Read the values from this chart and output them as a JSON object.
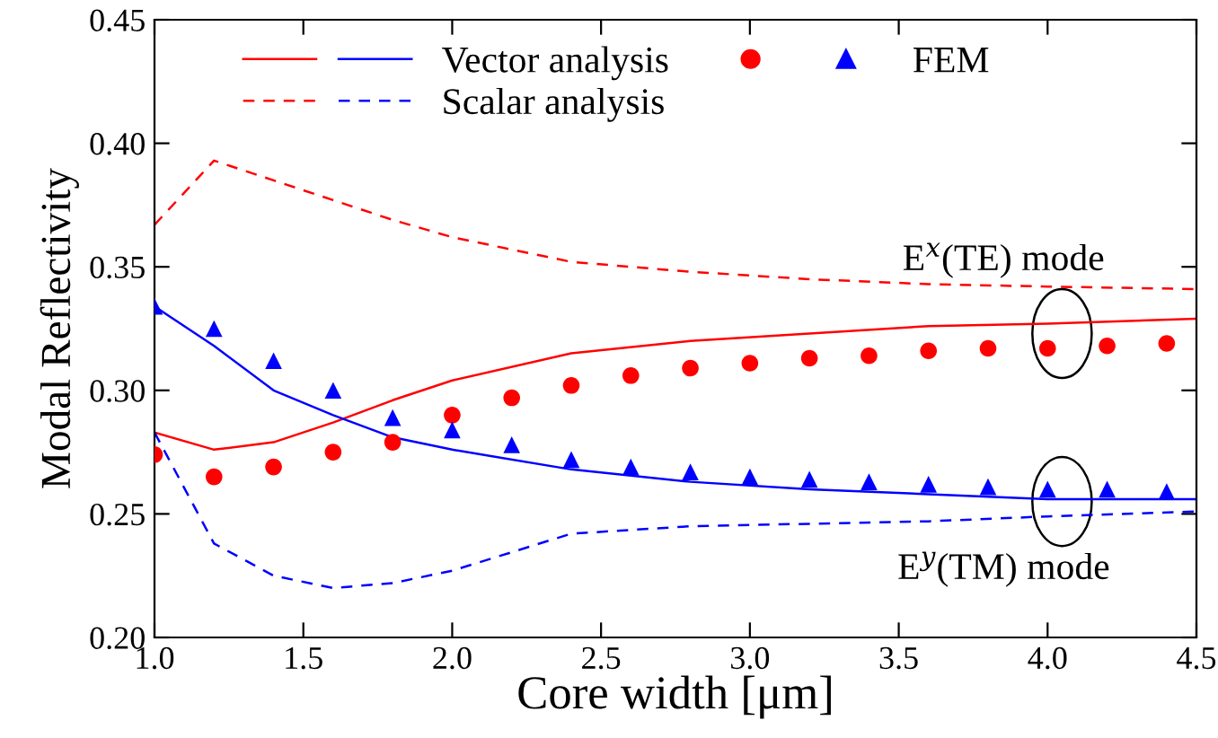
{
  "chart_data": {
    "type": "line",
    "xlabel": "Core width [μm]",
    "ylabel": "Modal Reflectivity",
    "xlim": [
      1.0,
      4.5
    ],
    "ylim": [
      0.2,
      0.45
    ],
    "xticks": [
      {
        "value": 1.0,
        "label": "1.0"
      },
      {
        "value": 1.5,
        "label": "1.5"
      },
      {
        "value": 2.0,
        "label": "2.0"
      },
      {
        "value": 2.5,
        "label": "2.5"
      },
      {
        "value": 3.0,
        "label": "3.0"
      },
      {
        "value": 3.5,
        "label": "3.5"
      },
      {
        "value": 4.0,
        "label": "4.0"
      },
      {
        "value": 4.5,
        "label": "4.5"
      }
    ],
    "yticks": [
      {
        "value": 0.2,
        "label": "0.20"
      },
      {
        "value": 0.25,
        "label": "0.25"
      },
      {
        "value": 0.3,
        "label": "0.30"
      },
      {
        "value": 0.35,
        "label": "0.35"
      },
      {
        "value": 0.4,
        "label": "0.40"
      },
      {
        "value": 0.45,
        "label": "0.45"
      }
    ],
    "grid": false,
    "legend": "top left",
    "series": [
      {
        "line_style": "solid",
        "color": "#ff0000",
        "x": [
          1.0,
          1.2,
          1.4,
          1.6,
          1.8,
          2.0,
          2.4,
          2.8,
          3.2,
          3.6,
          4.0,
          4.5
        ],
        "values": [
          0.283,
          0.276,
          0.279,
          0.287,
          0.296,
          0.304,
          0.315,
          0.32,
          0.323,
          0.326,
          0.327,
          0.329
        ]
      },
      {
        "name": "Vector analysis",
        "line_style": "solid",
        "color": "#0000ff",
        "x": [
          1.0,
          1.2,
          1.4,
          1.6,
          1.8,
          2.0,
          2.4,
          2.8,
          3.2,
          3.6,
          4.0,
          4.5
        ],
        "values": [
          0.334,
          0.318,
          0.3,
          0.29,
          0.281,
          0.276,
          0.268,
          0.263,
          0.26,
          0.258,
          0.256,
          0.256
        ]
      },
      {
        "line_style": "dashed",
        "color": "#ff0000",
        "x": [
          1.0,
          1.2,
          1.4,
          1.6,
          1.8,
          2.0,
          2.4,
          2.8,
          3.2,
          3.6,
          4.0,
          4.5
        ],
        "values": [
          0.367,
          0.393,
          0.385,
          0.377,
          0.369,
          0.362,
          0.352,
          0.348,
          0.345,
          0.343,
          0.342,
          0.341
        ]
      },
      {
        "name": "Scalar analysis",
        "line_style": "dashed",
        "color": "#0000ff",
        "x": [
          1.0,
          1.2,
          1.4,
          1.6,
          1.8,
          2.0,
          2.4,
          2.8,
          3.2,
          3.6,
          4.0,
          4.5
        ],
        "values": [
          0.283,
          0.238,
          0.225,
          0.22,
          0.222,
          0.227,
          0.242,
          0.245,
          0.246,
          0.247,
          0.249,
          0.251
        ]
      },
      {
        "type": "scatter",
        "marker": "circle",
        "color": "#ff0000",
        "x": [
          1.0,
          1.2,
          1.4,
          1.6,
          1.8,
          2.0,
          2.2,
          2.4,
          2.6,
          2.8,
          3.0,
          3.2,
          3.4,
          3.6,
          3.8,
          4.0,
          4.2,
          4.4
        ],
        "values": [
          0.274,
          0.265,
          0.269,
          0.275,
          0.279,
          0.29,
          0.297,
          0.302,
          0.306,
          0.309,
          0.311,
          0.313,
          0.314,
          0.316,
          0.317,
          0.317,
          0.318,
          0.319
        ]
      },
      {
        "name": "FEM",
        "type": "scatter",
        "marker": "triangle",
        "color": "#0000ff",
        "x": [
          1.0,
          1.2,
          1.4,
          1.6,
          1.8,
          2.0,
          2.2,
          2.4,
          2.6,
          2.8,
          3.0,
          3.2,
          3.4,
          3.6,
          3.8,
          4.0,
          4.2,
          4.4
        ],
        "values": [
          0.334,
          0.325,
          0.312,
          0.3,
          0.289,
          0.284,
          0.278,
          0.272,
          0.269,
          0.267,
          0.265,
          0.264,
          0.263,
          0.262,
          0.261,
          0.26,
          0.26,
          0.259
        ]
      }
    ],
    "annotations": [
      "E$^{x}$(TE) mode",
      "E$^{y}$(TM) mode"
    ]
  }
}
